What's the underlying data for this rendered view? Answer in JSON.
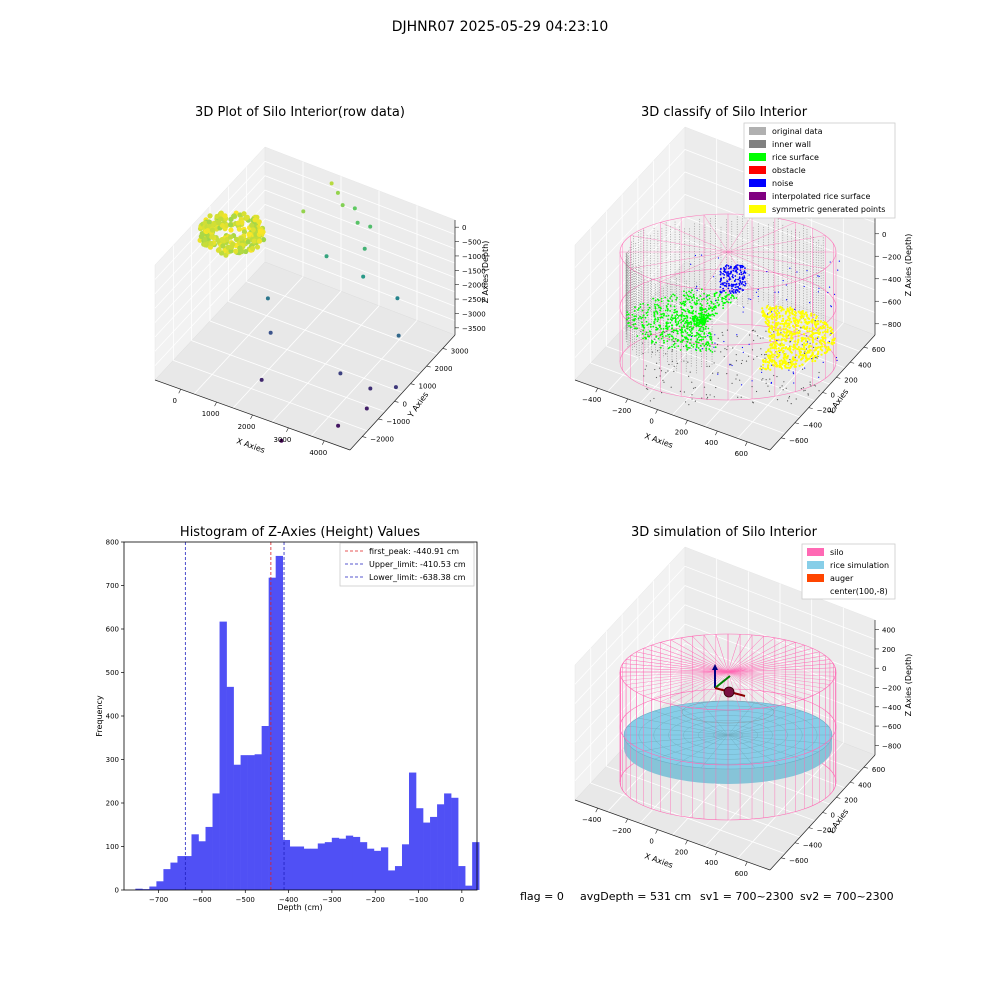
{
  "suptitle": "DJHNR07 2025-05-29 04:23:10",
  "footer": {
    "flag": "flag = 0",
    "avg": "avgDepth = 531 cm",
    "sv1": "sv1 = 700~2300",
    "sv2": "sv2 = 700~2300"
  },
  "colors": {
    "bar": "#5050f5",
    "first_peak": "#e02020",
    "limits": "#2020c0",
    "silo": "#ff69b4",
    "rice": "#87cee8",
    "auger": "#ff4500",
    "inner_wall": "#808080",
    "rice_surface": "#00ff00",
    "obstacle": "#ff0000",
    "noise": "#0000ff",
    "interp": "#800080",
    "symmetric": "#ffff00",
    "original": "#b0b0b0"
  },
  "chart_data": [
    {
      "type": "scatter",
      "projection": "3d",
      "title": "3D Plot of Silo Interior(row data)",
      "xlabel": "X Axies",
      "ylabel": "Y Axies",
      "zlabel": "Z Axies (Depth)",
      "xticks": [
        "0",
        "1000",
        "2000",
        "3000",
        "4000"
      ],
      "yticks": [
        "−2000",
        "−1000",
        "0",
        "1000",
        "2000",
        "3000"
      ],
      "zticks": [
        "0",
        "−500",
        "−1000",
        "−1500",
        "−2000",
        "−2500",
        "−3000",
        "−3500"
      ],
      "colormap": "viridis",
      "dense_cluster": {
        "x_range": [
          -300,
          400
        ],
        "y_range": [
          -400,
          400
        ],
        "z_range": [
          -700,
          0
        ]
      },
      "points": [
        {
          "x": 1600,
          "y": 2600,
          "z": -400
        },
        {
          "x": 1700,
          "y": 2700,
          "z": -600
        },
        {
          "x": 1900,
          "y": 2500,
          "z": -700
        },
        {
          "x": 2000,
          "y": 2900,
          "z": -900
        },
        {
          "x": 2200,
          "y": 2600,
          "z": -1000
        },
        {
          "x": 2400,
          "y": 2800,
          "z": -1100
        },
        {
          "x": 2500,
          "y": 2300,
          "z": -1300
        },
        {
          "x": 1400,
          "y": 1600,
          "z": -600
        },
        {
          "x": 1800,
          "y": 1900,
          "z": -1500
        },
        {
          "x": 2600,
          "y": 2000,
          "z": -1700
        },
        {
          "x": 3300,
          "y": 2200,
          "z": -2000
        },
        {
          "x": 3600,
          "y": 1600,
          "z": -2400
        },
        {
          "x": 900,
          "y": 900,
          "z": -2200
        },
        {
          "x": 1100,
          "y": 600,
          "z": -2700
        },
        {
          "x": 2800,
          "y": 400,
          "z": -2900
        },
        {
          "x": 3400,
          "y": 600,
          "z": -3100
        },
        {
          "x": 3500,
          "y": 200,
          "z": -3300
        },
        {
          "x": 3900,
          "y": 800,
          "z": -3000
        },
        {
          "x": 1300,
          "y": -300,
          "z": -3200
        },
        {
          "x": 3200,
          "y": -600,
          "z": -3400
        },
        {
          "x": 2300,
          "y": -1500,
          "z": -3600
        }
      ]
    },
    {
      "type": "scatter",
      "projection": "3d",
      "title": "3D classify of Silo Interior",
      "xlabel": "X Axies",
      "ylabel": "Y Axies",
      "zlabel": "Z Axies (Depth)",
      "xticks": [
        "−400",
        "−200",
        "0",
        "200",
        "400",
        "600"
      ],
      "yticks": [
        "−600",
        "−400",
        "−200",
        "0",
        "200",
        "400",
        "600"
      ],
      "zticks": [
        "200",
        "0",
        "−200",
        "−400",
        "−600",
        "−800"
      ],
      "legend": [
        "original data",
        "inner wall",
        "rice surface",
        "obstacle",
        "noise",
        "interpolated rice surface",
        "symmetric generated points"
      ],
      "legend_loc": "upper right"
    },
    {
      "type": "bar",
      "title": "Histogram of Z-Axies (Height) Values",
      "xlabel": "Depth (cm)",
      "ylabel": "Frequency",
      "xlim": [
        -780,
        35
      ],
      "ylim": [
        0,
        800
      ],
      "xticks": [
        "−700",
        "−600",
        "−500",
        "−400",
        "−300",
        "−200",
        "−100",
        "0"
      ],
      "yticks": [
        "0",
        "100",
        "200",
        "300",
        "400",
        "500",
        "600",
        "700",
        "800"
      ],
      "bin_start": -770,
      "bin_width": 16.2,
      "values": [
        0,
        3,
        2,
        8,
        20,
        48,
        63,
        78,
        78,
        128,
        112,
        145,
        222,
        617,
        467,
        288,
        310,
        310,
        312,
        377,
        718,
        768,
        115,
        100,
        100,
        95,
        95,
        107,
        110,
        120,
        118,
        125,
        122,
        110,
        95,
        90,
        98,
        45,
        55,
        105,
        270,
        188,
        155,
        168,
        197,
        222,
        212,
        55,
        10,
        110
      ],
      "vlines": [
        {
          "label": "first_peak: -440.91 cm",
          "x": -440.91,
          "color": "red"
        },
        {
          "label": "Upper_limit: -410.53 cm",
          "x": -410.53,
          "color": "blue"
        },
        {
          "label": "Lower_limit: -638.38 cm",
          "x": -638.38,
          "color": "blue"
        }
      ],
      "legend_loc": "upper right"
    },
    {
      "type": "surface",
      "projection": "3d",
      "title": "3D simulation of Silo Interior",
      "xlabel": "X Axies",
      "ylabel": "Y Axies",
      "zlabel": "Z Axies (Depth)",
      "xticks": [
        "−400",
        "−200",
        "0",
        "200",
        "400",
        "600"
      ],
      "yticks": [
        "−600",
        "−400",
        "−200",
        "0",
        "200",
        "400",
        "600"
      ],
      "zticks": [
        "400",
        "200",
        "0",
        "−200",
        "−400",
        "−600",
        "−800"
      ],
      "legend": [
        "silo",
        "rice simulation",
        "auger",
        "center(100,-8)"
      ],
      "legend_loc": "upper right"
    }
  ]
}
